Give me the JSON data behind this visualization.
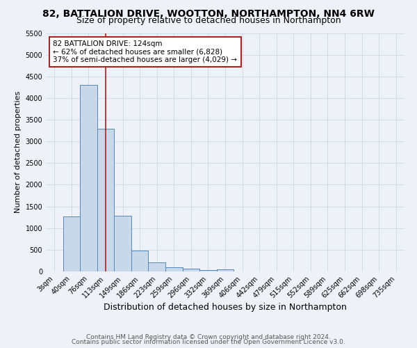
{
  "title1": "82, BATTALION DRIVE, WOOTTON, NORTHAMPTON, NN4 6RW",
  "title2": "Size of property relative to detached houses in Northampton",
  "xlabel": "Distribution of detached houses by size in Northampton",
  "ylabel": "Number of detached properties",
  "footer1": "Contains HM Land Registry data © Crown copyright and database right 2024.",
  "footer2": "Contains public sector information licensed under the Open Government Licence v3.0.",
  "bin_labels": [
    "3sqm",
    "40sqm",
    "76sqm",
    "113sqm",
    "149sqm",
    "186sqm",
    "223sqm",
    "259sqm",
    "296sqm",
    "332sqm",
    "369sqm",
    "406sqm",
    "442sqm",
    "479sqm",
    "515sqm",
    "552sqm",
    "589sqm",
    "625sqm",
    "662sqm",
    "698sqm",
    "735sqm"
  ],
  "bar_heights": [
    0,
    1270,
    4300,
    3300,
    1280,
    480,
    205,
    90,
    65,
    35,
    50,
    0,
    0,
    0,
    0,
    0,
    0,
    0,
    0,
    0,
    0
  ],
  "bar_color": "#c8d8e8",
  "bar_edge_color": "#5588bb",
  "vline_x_index": 3,
  "vline_color": "#aa2222",
  "annotation_text": "82 BATTALION DRIVE: 124sqm\n← 62% of detached houses are smaller (6,828)\n37% of semi-detached houses are larger (4,029) →",
  "annotation_box_color": "white",
  "annotation_box_edge": "#aa2222",
  "ylim": [
    0,
    5500
  ],
  "yticks": [
    0,
    500,
    1000,
    1500,
    2000,
    2500,
    3000,
    3500,
    4000,
    4500,
    5000,
    5500
  ],
  "background_color": "#eef2f8",
  "grid_color": "#c8d0dc",
  "title1_fontsize": 10,
  "title2_fontsize": 9,
  "xlabel_fontsize": 9,
  "ylabel_fontsize": 8,
  "tick_fontsize": 7,
  "footer_fontsize": 6.5,
  "annotation_fontsize": 7.5
}
